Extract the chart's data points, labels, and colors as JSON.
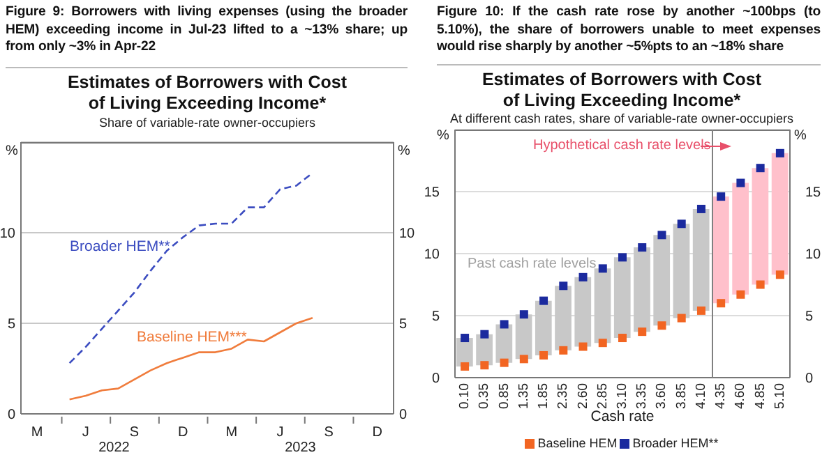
{
  "chart_data": [
    {
      "type": "line",
      "title": "Estimates of Borrowers with Cost of Living Exceeding Income*",
      "subtitle": "Share of variable-rate owner-occupiers",
      "ylabel": "%",
      "y2label": "%",
      "annotations": [
        "Figure 9: Borrowers with living expenses (using the broader HEM) exceeding income in Jul-23 lifted to a ~13% share; up from only ~3% in Apr-22",
        "2022",
        "2023"
      ],
      "categories": [
        null,
        "M",
        null,
        null,
        "J",
        null,
        null,
        "S",
        null,
        null,
        "D",
        null,
        null,
        "M",
        null,
        null,
        "J",
        null,
        null,
        "S",
        null,
        null,
        "D",
        null
      ],
      "series": [
        {
          "name": "Broader HEM**",
          "color": "#3b4cc0",
          "line_style": "dashed",
          "values": [
            null,
            null,
            null,
            2.8,
            3.7,
            4.7,
            5.7,
            6.7,
            7.9,
            9.0,
            9.75,
            10.4,
            10.5,
            10.5,
            11.4,
            11.4,
            12.4,
            12.6,
            13.3,
            null,
            null,
            null,
            null,
            null
          ]
        },
        {
          "name": "Baseline HEM***",
          "color": "#f07c3c",
          "line_style": "solid",
          "values": [
            null,
            null,
            null,
            0.8,
            1.0,
            1.3,
            1.4,
            1.9,
            2.4,
            2.8,
            3.1,
            3.4,
            3.4,
            3.6,
            4.1,
            4.0,
            4.5,
            5.0,
            5.3,
            null,
            null,
            null,
            null,
            null
          ]
        }
      ],
      "legend": false,
      "ylim": [
        0,
        15
      ],
      "yticks": [
        0,
        5,
        10
      ],
      "y2lim": [
        0,
        15
      ],
      "y2ticks": [
        0,
        5,
        10
      ],
      "grid": "y",
      "marker": "none"
    },
    {
      "type": "bar",
      "title": "Estimates of Borrowers with Cost of Living Exceeding Income*",
      "subtitle": "At different cash rates, share of variable-rate owner-occupiers",
      "xlabel": "Cash rate",
      "ylabel": "%",
      "y2label": "%",
      "annotations": [
        "Figure 10: If the cash rate rose by another ~100bps (to 5.10%), the share of borrowers unable to meet expenses would rise sharply by another ~5%pts to an ~18% share",
        "Hypothetical cash rate levels",
        "Past cash rate levels"
      ],
      "categories": [
        "0.10",
        "0.35",
        "0.85",
        "1.35",
        "1.85",
        "2.35",
        "2.60",
        "2.85",
        "3.10",
        "3.35",
        "3.60",
        "3.85",
        "4.10",
        "4.35",
        "4.60",
        "4.85",
        "5.10"
      ],
      "series": [
        {
          "colors": [
            "#c8c8c8",
            "#c8c8c8",
            "#c8c8c8",
            "#c8c8c8",
            "#c8c8c8",
            "#c8c8c8",
            "#c8c8c8",
            "#c8c8c8",
            "#c8c8c8",
            "#c8c8c8",
            "#c8c8c8",
            "#c8c8c8",
            "#c8c8c8",
            "#ffc0cb",
            "#ffc0cb",
            "#ffc0cb",
            "#ffc0cb"
          ],
          "base": [
            0.9,
            1.0,
            1.2,
            1.5,
            1.8,
            2.2,
            2.5,
            2.8,
            3.2,
            3.7,
            4.2,
            4.8,
            5.4,
            6.0,
            6.7,
            7.5,
            8.3
          ],
          "values": [
            2.3,
            2.5,
            3.1,
            3.6,
            4.4,
            5.2,
            5.6,
            6.0,
            6.5,
            6.8,
            7.3,
            7.6,
            8.2,
            8.6,
            9.0,
            9.4,
            9.8
          ]
        },
        {
          "type": "scatter",
          "name": "Baseline HEM",
          "color": "#f26522",
          "values": [
            0.9,
            1.0,
            1.2,
            1.5,
            1.8,
            2.2,
            2.5,
            2.8,
            3.2,
            3.7,
            4.2,
            4.8,
            5.4,
            6.0,
            6.7,
            7.5,
            8.3
          ]
        },
        {
          "type": "scatter",
          "name": "Broader HEM**",
          "color": "#1b2a9e",
          "values": [
            3.2,
            3.5,
            4.3,
            5.1,
            6.2,
            7.4,
            8.1,
            8.8,
            9.7,
            10.5,
            11.5,
            12.4,
            13.6,
            14.6,
            15.7,
            16.9,
            18.1
          ]
        }
      ],
      "ref_lines": [
        {
          "axis": "x",
          "value": "4.35",
          "color": "#808080"
        }
      ],
      "ylim": [
        0,
        20
      ],
      "yticks": [
        0,
        5,
        10,
        15
      ],
      "y2lim": [
        0,
        20
      ],
      "y2ticks": [
        0,
        5,
        10,
        15
      ],
      "grid": "y",
      "legend": "bottom",
      "marker": "square"
    }
  ]
}
